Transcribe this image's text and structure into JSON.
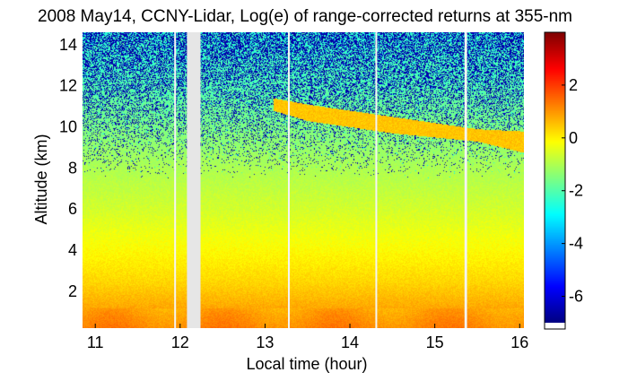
{
  "chart_data": {
    "type": "heatmap",
    "title": "2008 May14, CCNY-Lidar, Log(e) of range-corrected returns at 355-nm",
    "xlabel": "Local time (hour)",
    "ylabel": "Altitude (km)",
    "xlim": [
      10.85,
      16.05
    ],
    "ylim": [
      0.2,
      14.6
    ],
    "xticks": [
      {
        "value": 11,
        "label": "11"
      },
      {
        "value": 12,
        "label": "12"
      },
      {
        "value": 13,
        "label": "13"
      },
      {
        "value": 14,
        "label": "14"
      },
      {
        "value": 15,
        "label": "15"
      },
      {
        "value": 16,
        "label": "16"
      }
    ],
    "yticks": [
      {
        "value": 2,
        "label": "2"
      },
      {
        "value": 4,
        "label": "4"
      },
      {
        "value": 6,
        "label": "6"
      },
      {
        "value": 8,
        "label": "8"
      },
      {
        "value": 10,
        "label": "10"
      },
      {
        "value": 12,
        "label": "12"
      },
      {
        "value": 14,
        "label": "14"
      }
    ],
    "colorbar": {
      "colormap": "jet",
      "clim": [
        -7,
        4
      ],
      "ticks": [
        {
          "value": 2,
          "label": "2"
        },
        {
          "value": 0,
          "label": "0"
        },
        {
          "value": -2,
          "label": "-2"
        },
        {
          "value": -4,
          "label": "-4"
        },
        {
          "value": -6,
          "label": "-6"
        }
      ]
    },
    "data_gaps_hours": [
      {
        "start": 11.93,
        "end": 11.95
      },
      {
        "start": 12.08,
        "end": 12.24
      },
      {
        "start": 13.27,
        "end": 13.29
      },
      {
        "start": 14.3,
        "end": 14.32
      },
      {
        "start": 15.35,
        "end": 15.38
      }
    ],
    "cloud_layer": {
      "value": 0.5,
      "altitude_km": [
        {
          "hour": 13.1,
          "bottom": 10.8,
          "top": 11.4
        },
        {
          "hour": 13.5,
          "bottom": 10.3,
          "top": 11.1
        },
        {
          "hour": 14.0,
          "bottom": 10.0,
          "top": 10.8
        },
        {
          "hour": 14.5,
          "bottom": 9.7,
          "top": 10.5
        },
        {
          "hour": 15.0,
          "bottom": 9.5,
          "top": 10.2
        },
        {
          "hour": 15.5,
          "bottom": 9.3,
          "top": 9.9
        },
        {
          "hour": 16.0,
          "bottom": 8.8,
          "top": 9.8
        }
      ]
    },
    "background_profile": [
      {
        "altitude_km": 0.2,
        "value": 1.2
      },
      {
        "altitude_km": 0.8,
        "value": 1.0
      },
      {
        "altitude_km": 1.5,
        "value": 0.7
      },
      {
        "altitude_km": 2.5,
        "value": 0.3
      },
      {
        "altitude_km": 4.0,
        "value": -0.1
      },
      {
        "altitude_km": 6.0,
        "value": -0.6
      },
      {
        "altitude_km": 8.0,
        "value": -1.0
      },
      {
        "altitude_km": 10.0,
        "value": -1.5
      },
      {
        "altitude_km": 12.0,
        "value": -2.0
      },
      {
        "altitude_km": 14.6,
        "value": -2.4
      }
    ]
  }
}
